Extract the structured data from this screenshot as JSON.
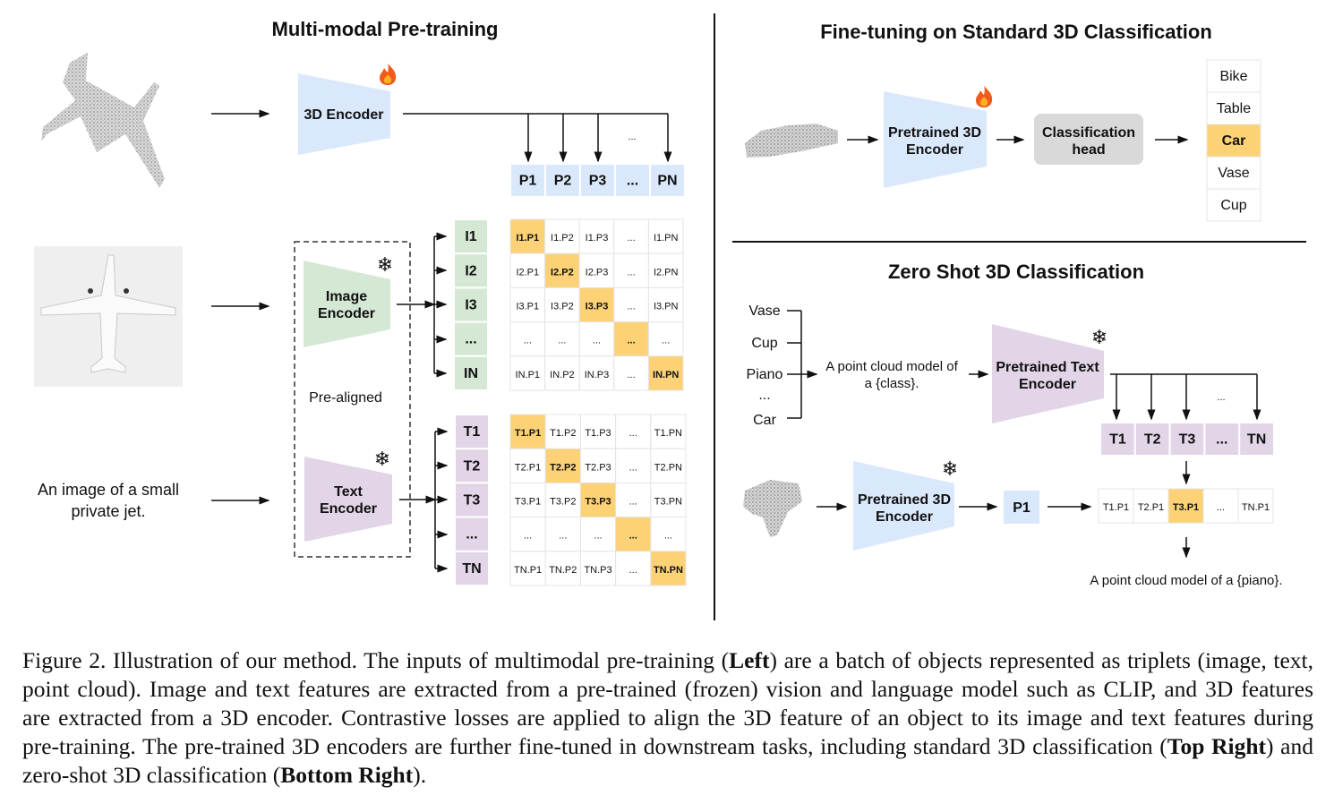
{
  "left": {
    "title": "Multi-modal Pre-training",
    "encoder_3d": "3D Encoder",
    "image_encoder": [
      "Image",
      "Encoder"
    ],
    "text_encoder": [
      "Text",
      "Encoder"
    ],
    "pre_aligned": "Pre-aligned",
    "text_input": [
      "An image of a small",
      "private jet."
    ],
    "ellipsis": "...",
    "p_labels": [
      "P1",
      "P2",
      "P3",
      "...",
      "PN"
    ],
    "i_labels": [
      "I1",
      "I2",
      "I3",
      "...",
      "IN"
    ],
    "t_labels": [
      "T1",
      "T2",
      "T3",
      "...",
      "TN"
    ],
    "i_matrix": [
      [
        "I1.P1",
        "I1.P2",
        "I1.P3",
        "...",
        "I1.PN"
      ],
      [
        "I2.P1",
        "I2.P2",
        "I2.P3",
        "...",
        "I2.PN"
      ],
      [
        "I3.P1",
        "I3.P2",
        "I3.P3",
        "...",
        "I3.PN"
      ],
      [
        "...",
        "...",
        "...",
        "...",
        "..."
      ],
      [
        "IN.P1",
        "IN.P2",
        "IN.P3",
        "...",
        "IN.PN"
      ]
    ],
    "t_matrix": [
      [
        "T1.P1",
        "T1.P2",
        "T1.P3",
        "...",
        "T1.PN"
      ],
      [
        "T2.P1",
        "T2.P2",
        "T2.P3",
        "...",
        "T2.PN"
      ],
      [
        "T3.P1",
        "T3.P2",
        "T3.P3",
        "...",
        "T3.PN"
      ],
      [
        "...",
        "...",
        "...",
        "...",
        "..."
      ],
      [
        "TN.P1",
        "TN.P2",
        "TN.P3",
        "...",
        "TN.PN"
      ]
    ]
  },
  "top_right": {
    "title": "Fine-tuning on Standard 3D Classification",
    "encoder": [
      "Pretrained 3D",
      "Encoder"
    ],
    "head": [
      "Classification",
      "head"
    ],
    "classes": [
      "Bike",
      "Table",
      "Car",
      "Vase",
      "Cup"
    ],
    "selected_class": "Car"
  },
  "bottom_right": {
    "title": "Zero Shot 3D Classification",
    "classes": [
      "Vase",
      "Cup",
      "Piano",
      "...",
      "Car"
    ],
    "prompt": [
      "A point cloud model of",
      "a {class}."
    ],
    "text_encoder": [
      "Pretrained Text",
      "Encoder"
    ],
    "encoder_3d": [
      "Pretrained 3D",
      "Encoder"
    ],
    "ellipsis": "...",
    "t_labels": [
      "T1",
      "T2",
      "T3",
      "...",
      "TN"
    ],
    "p_label": "P1",
    "scores": [
      "T1.P1",
      "T2.P1",
      "T3.P1",
      "...",
      "TN.P1"
    ],
    "selected_index": 2,
    "result": "A point cloud model of a {piano}."
  },
  "icons": {
    "trainable": "fire-icon",
    "frozen": "snowflake-icon"
  },
  "colors": {
    "blue": "#dae8fc",
    "green": "#d5e8d4",
    "purple": "#e1d5e7",
    "highlight": "#fdd276",
    "head": "#d9d9d9"
  },
  "caption": {
    "l1a": "Figure 2. Illustration of our method. The inputs of multimodal pre-training (",
    "l1b": "Left",
    "l1c": ") are a batch of objects represented as triplets (image, text,",
    "l2": "point cloud). Image and text features are extracted from a pre-trained (frozen) vision and language model such as CLIP, and 3D features",
    "l3": "are extracted from a 3D encoder. Contrastive losses are applied to align the 3D feature of an object to its image and text features during",
    "l4a": "pre-training. The pre-trained 3D encoders are further fine-tuned in downstream tasks, including standard 3D classification (",
    "l4b": "Top Right",
    "l4c": ") and",
    "l5a": "zero-shot 3D classification (",
    "l5b": "Bottom Right",
    "l5c": ")."
  }
}
